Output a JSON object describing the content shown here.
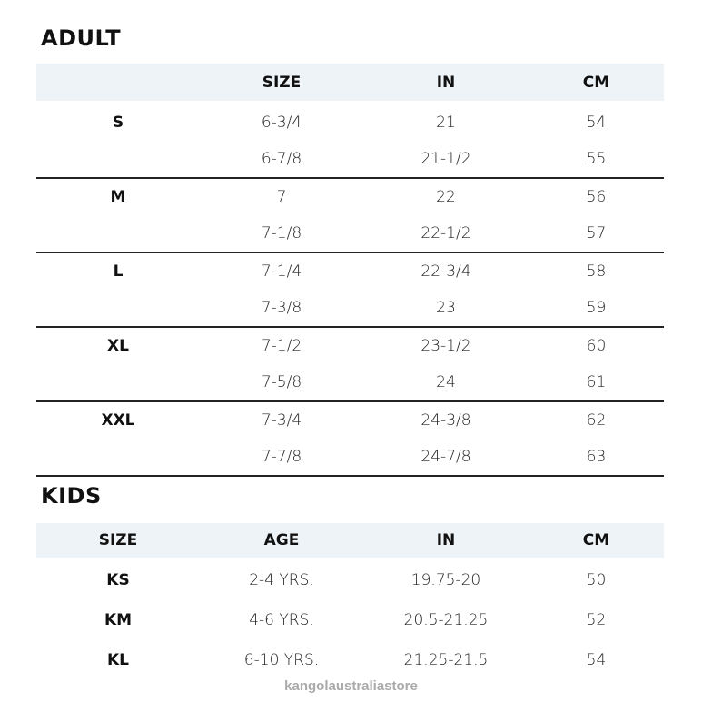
{
  "adult": {
    "title": "ADULT",
    "headers": [
      "",
      "SIZE",
      "IN",
      "CM"
    ],
    "groups": [
      {
        "label": "S",
        "rows": [
          [
            "6-3/4",
            "21",
            "54"
          ],
          [
            "6-7/8",
            "21-1/2",
            "55"
          ]
        ]
      },
      {
        "label": "M",
        "rows": [
          [
            "7",
            "22",
            "56"
          ],
          [
            "7-1/8",
            "22-1/2",
            "57"
          ]
        ]
      },
      {
        "label": "L",
        "rows": [
          [
            "7-1/4",
            "22-3/4",
            "58"
          ],
          [
            "7-3/8",
            "23",
            "59"
          ]
        ]
      },
      {
        "label": "XL",
        "rows": [
          [
            "7-1/2",
            "23-1/2",
            "60"
          ],
          [
            "7-5/8",
            "24",
            "61"
          ]
        ]
      },
      {
        "label": "XXL",
        "rows": [
          [
            "7-3/4",
            "24-3/8",
            "62"
          ],
          [
            "7-7/8",
            "24-7/8",
            "63"
          ]
        ]
      }
    ]
  },
  "kids": {
    "title": "KIDS",
    "headers": [
      "SIZE",
      "AGE",
      "IN",
      "CM"
    ],
    "rows": [
      [
        "KS",
        "2-4 YRS.",
        "19.75-20",
        "50"
      ],
      [
        "KM",
        "4-6 YRS.",
        "20.5-21.25",
        "52"
      ],
      [
        "KL",
        "6-10 YRS.",
        "21.25-21.5",
        "54"
      ]
    ]
  },
  "watermark": "kangolaustraliastore",
  "colors": {
    "header_band": "#eef3f8",
    "divider": "#222222"
  }
}
